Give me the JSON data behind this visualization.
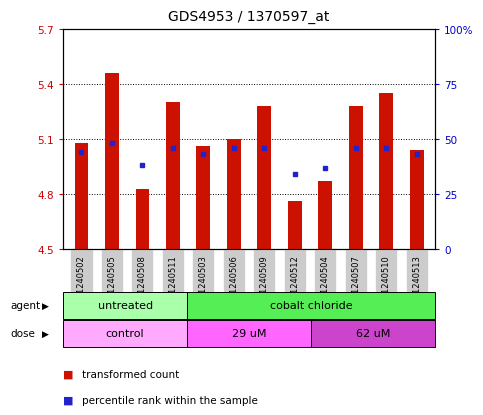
{
  "title": "GDS4953 / 1370597_at",
  "samples": [
    "GSM1240502",
    "GSM1240505",
    "GSM1240508",
    "GSM1240511",
    "GSM1240503",
    "GSM1240506",
    "GSM1240509",
    "GSM1240512",
    "GSM1240504",
    "GSM1240507",
    "GSM1240510",
    "GSM1240513"
  ],
  "bar_values": [
    5.08,
    5.46,
    4.83,
    5.3,
    5.06,
    5.1,
    5.28,
    4.76,
    4.87,
    5.28,
    5.35,
    5.04
  ],
  "blue_dot_values": [
    44,
    48,
    38,
    46,
    43,
    46,
    46,
    34,
    37,
    46,
    46,
    43
  ],
  "ymin": 4.5,
  "ymax": 5.7,
  "yticks": [
    4.5,
    4.8,
    5.1,
    5.4,
    5.7
  ],
  "right_yticks": [
    0,
    25,
    50,
    75,
    100
  ],
  "right_yticklabels": [
    "0",
    "25",
    "50",
    "75",
    "100%"
  ],
  "bar_color": "#cc1100",
  "blue_color": "#2222cc",
  "bar_bottom": 4.5,
  "agent_groups": [
    {
      "label": "untreated",
      "start": 0,
      "end": 4,
      "color": "#aaffaa"
    },
    {
      "label": "cobalt chloride",
      "start": 4,
      "end": 12,
      "color": "#55ee55"
    }
  ],
  "dose_groups": [
    {
      "label": "control",
      "start": 0,
      "end": 4,
      "color": "#ffaaff"
    },
    {
      "label": "29 uM",
      "start": 4,
      "end": 8,
      "color": "#ff66ff"
    },
    {
      "label": "62 uM",
      "start": 8,
      "end": 12,
      "color": "#cc44cc"
    }
  ],
  "legend_bar_color": "#cc1100",
  "legend_dot_color": "#2222cc",
  "left_tick_color": "#cc0000",
  "right_tick_color": "#0000cc",
  "title_fontsize": 10,
  "tick_fontsize": 7.5,
  "sample_fontsize": 6.0,
  "bar_width": 0.45,
  "gray_bg": "#cccccc"
}
